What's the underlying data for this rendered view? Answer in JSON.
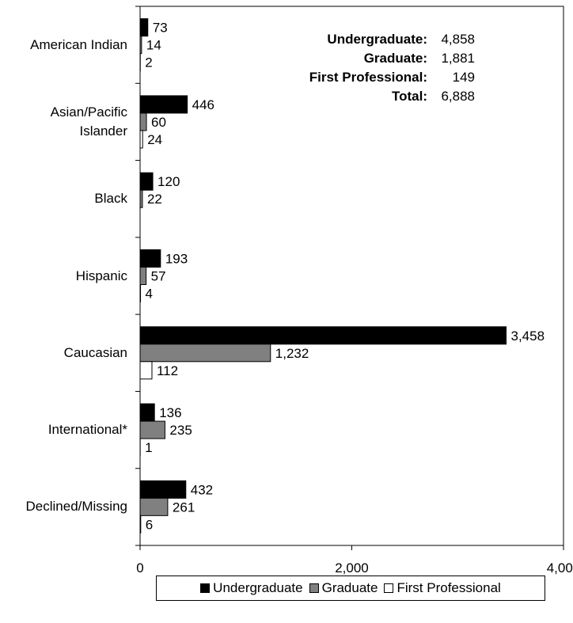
{
  "chart_data": {
    "type": "bar",
    "orientation": "horizontal",
    "categories": [
      "American Indian",
      "Asian/Pacific Islander",
      "Black",
      "Hispanic",
      "Caucasian",
      "International*",
      "Declined/Missing"
    ],
    "category_lines": [
      [
        "American Indian"
      ],
      [
        "Asian/Pacific",
        "Islander"
      ],
      [
        "Black"
      ],
      [
        "Hispanic"
      ],
      [
        "Caucasian"
      ],
      [
        "International*"
      ],
      [
        "Declined/Missing"
      ]
    ],
    "series": [
      {
        "name": "Undergraduate",
        "color": "#000000",
        "values": [
          73,
          446,
          120,
          193,
          3458,
          136,
          432
        ],
        "labels": [
          "73",
          "446",
          "120",
          "193",
          "3,458",
          "136",
          "432"
        ]
      },
      {
        "name": "Graduate",
        "color": "#808080",
        "values": [
          14,
          60,
          22,
          57,
          1232,
          235,
          261
        ],
        "labels": [
          "14",
          "60",
          "22",
          "57",
          "1,232",
          "235",
          "261"
        ]
      },
      {
        "name": "First Professional",
        "color": "#ffffff",
        "values": [
          2,
          24,
          null,
          4,
          112,
          1,
          6
        ],
        "labels": [
          "2",
          "24",
          null,
          "4",
          "112",
          "1",
          "6"
        ]
      }
    ],
    "xlim": [
      0,
      4000
    ],
    "x_ticks": [
      0,
      2000,
      4000
    ],
    "x_tick_labels": [
      "0",
      "2,000",
      "4,000"
    ],
    "grid": false,
    "legend_position": "bottom",
    "totals": [
      {
        "label": "Undergraduate:",
        "value": "4,858"
      },
      {
        "label": "Graduate:",
        "value": "1,881"
      },
      {
        "label": "First Professional:",
        "value": "149"
      },
      {
        "label": "Total:",
        "value": "6,888"
      }
    ]
  }
}
